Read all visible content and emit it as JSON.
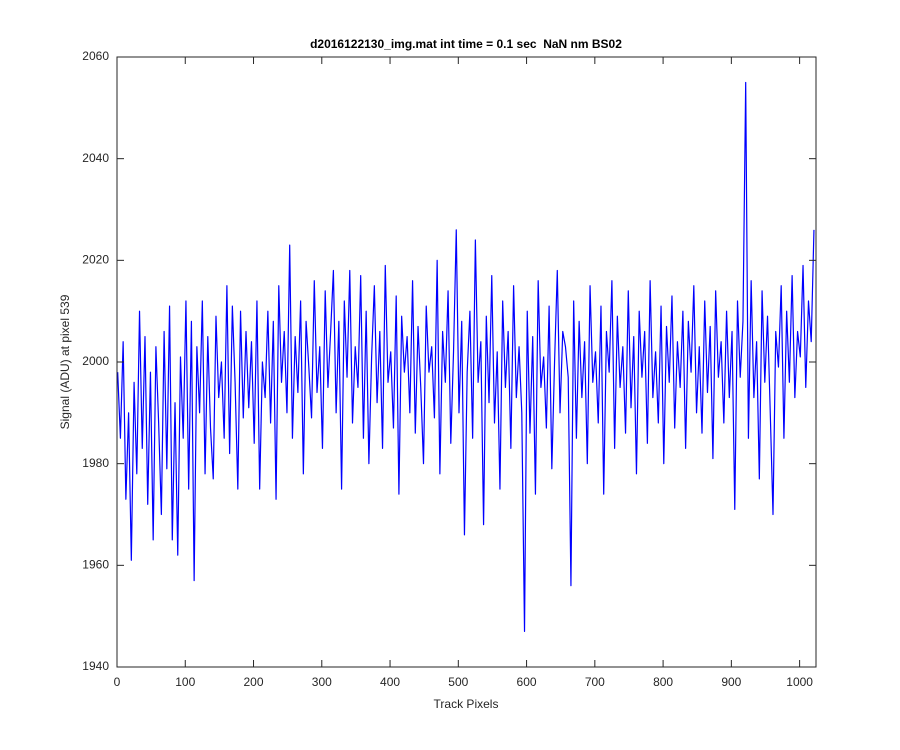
{
  "chart_data": {
    "type": "line",
    "title": "d2016122130_img.mat int time = 0.1 sec  NaN nm BS02",
    "xlabel": "Track Pixels",
    "ylabel": "Signal (ADU) at pixel 539",
    "color": "#0000ff",
    "xlim": [
      0,
      1024
    ],
    "ylim": [
      1940,
      2060
    ],
    "xticks": [
      0,
      100,
      200,
      300,
      400,
      500,
      600,
      700,
      800,
      900,
      1000
    ],
    "yticks": [
      1940,
      1960,
      1980,
      2000,
      2020,
      2040,
      2060
    ],
    "x": [
      1,
      5,
      9,
      13,
      17,
      21,
      25,
      29,
      33,
      37,
      41,
      45,
      49,
      53,
      57,
      61,
      65,
      69,
      73,
      77,
      81,
      85,
      89,
      93,
      97,
      101,
      105,
      109,
      113,
      117,
      121,
      125,
      129,
      133,
      137,
      141,
      145,
      149,
      153,
      157,
      161,
      165,
      169,
      173,
      177,
      181,
      185,
      189,
      193,
      197,
      201,
      205,
      209,
      213,
      217,
      221,
      225,
      229,
      233,
      237,
      241,
      245,
      249,
      253,
      257,
      261,
      265,
      269,
      273,
      277,
      281,
      285,
      289,
      293,
      297,
      301,
      305,
      309,
      313,
      317,
      321,
      325,
      329,
      333,
      337,
      341,
      345,
      349,
      353,
      357,
      361,
      365,
      369,
      373,
      377,
      381,
      385,
      389,
      393,
      397,
      401,
      405,
      409,
      413,
      417,
      421,
      425,
      429,
      433,
      437,
      441,
      445,
      449,
      453,
      457,
      461,
      465,
      469,
      473,
      477,
      481,
      485,
      489,
      493,
      497,
      501,
      505,
      509,
      513,
      517,
      521,
      525,
      529,
      533,
      537,
      541,
      545,
      549,
      553,
      557,
      561,
      565,
      569,
      573,
      577,
      581,
      585,
      589,
      593,
      597,
      601,
      605,
      609,
      613,
      617,
      621,
      625,
      629,
      633,
      637,
      641,
      645,
      649,
      653,
      657,
      661,
      665,
      669,
      673,
      677,
      681,
      685,
      689,
      693,
      697,
      701,
      705,
      709,
      713,
      717,
      721,
      725,
      729,
      733,
      737,
      741,
      745,
      749,
      753,
      757,
      761,
      765,
      769,
      773,
      777,
      781,
      785,
      789,
      793,
      797,
      801,
      805,
      809,
      813,
      817,
      821,
      825,
      829,
      833,
      837,
      841,
      845,
      849,
      853,
      857,
      861,
      865,
      869,
      873,
      877,
      881,
      885,
      889,
      893,
      897,
      901,
      905,
      909,
      913,
      917,
      921,
      925,
      929,
      933,
      937,
      941,
      945,
      949,
      953,
      957,
      961,
      965,
      969,
      973,
      977,
      981,
      985,
      989,
      993,
      997,
      1001,
      1005,
      1009,
      1013,
      1017,
      1021
    ],
    "values": [
      1998,
      1985,
      2004,
      1973,
      1990,
      1961,
      1996,
      1978,
      2010,
      1983,
      2005,
      1972,
      1998,
      1965,
      2003,
      1988,
      1970,
      2006,
      1979,
      2011,
      1965,
      1992,
      1962,
      2001,
      1985,
      2012,
      1975,
      2008,
      1957,
      2003,
      1990,
      2012,
      1978,
      2005,
      1987,
      1977,
      2009,
      1993,
      2000,
      1985,
      2015,
      1982,
      2011,
      1996,
      1975,
      2010,
      1989,
      2006,
      1991,
      2004,
      1984,
      2012,
      1975,
      2000,
      1993,
      2010,
      1988,
      2008,
      1973,
      2015,
      1996,
      2006,
      1990,
      2023,
      1985,
      2005,
      1994,
      2012,
      1978,
      2008,
      1999,
      1989,
      2016,
      1994,
      2003,
      1983,
      2014,
      1995,
      2006,
      2018,
      1990,
      2008,
      1975,
      2012,
      1997,
      2018,
      1988,
      2003,
      1995,
      2017,
      1985,
      2010,
      1980,
      2001,
      2015,
      1992,
      2006,
      1983,
      2019,
      1996,
      2002,
      1987,
      2013,
      1974,
      2009,
      1998,
      2005,
      1990,
      2016,
      1986,
      2007,
      1995,
      1980,
      2011,
      1998,
      2003,
      1989,
      2020,
      1978,
      2006,
      1996,
      2014,
      1984,
      2002,
      2026,
      1990,
      2008,
      1966,
      1998,
      2010,
      1985,
      2024,
      1996,
      2004,
      1968,
      2009,
      1992,
      2017,
      1988,
      2002,
      1975,
      2012,
      1995,
      2006,
      1983,
      2015,
      1993,
      2003,
      1990,
      1947,
      2010,
      1986,
      2005,
      1974,
      2016,
      1995,
      2001,
      1987,
      2011,
      1979,
      2000,
      2018,
      1990,
      2006,
      2003,
      1997,
      1956,
      2012,
      1985,
      2008,
      1993,
      2004,
      1980,
      2015,
      1996,
      2002,
      1988,
      2011,
      1974,
      2006,
      1998,
      2016,
      1983,
      2009,
      1995,
      2003,
      1986,
      2014,
      1991,
      2005,
      1978,
      2010,
      1997,
      2006,
      1984,
      2016,
      1993,
      2002,
      1988,
      2011,
      1980,
      2007,
      1996,
      2013,
      1987,
      2004,
      1995,
      2010,
      1983,
      2008,
      1998,
      2015,
      1990,
      2003,
      1986,
      2012,
      1994,
      2007,
      1981,
      2014,
      1997,
      2004,
      1988,
      2010,
      1993,
      2006,
      1971,
      2012,
      1997,
      2008,
      2055,
      1985,
      2016,
      1993,
      2004,
      1977,
      2014,
      1996,
      2009,
      1990,
      1970,
      2006,
      1999,
      2015,
      1985,
      2010,
      1996,
      2017,
      1993,
      2006,
      2001,
      2019,
      1995,
      2012,
      2004,
      2026
    ]
  }
}
